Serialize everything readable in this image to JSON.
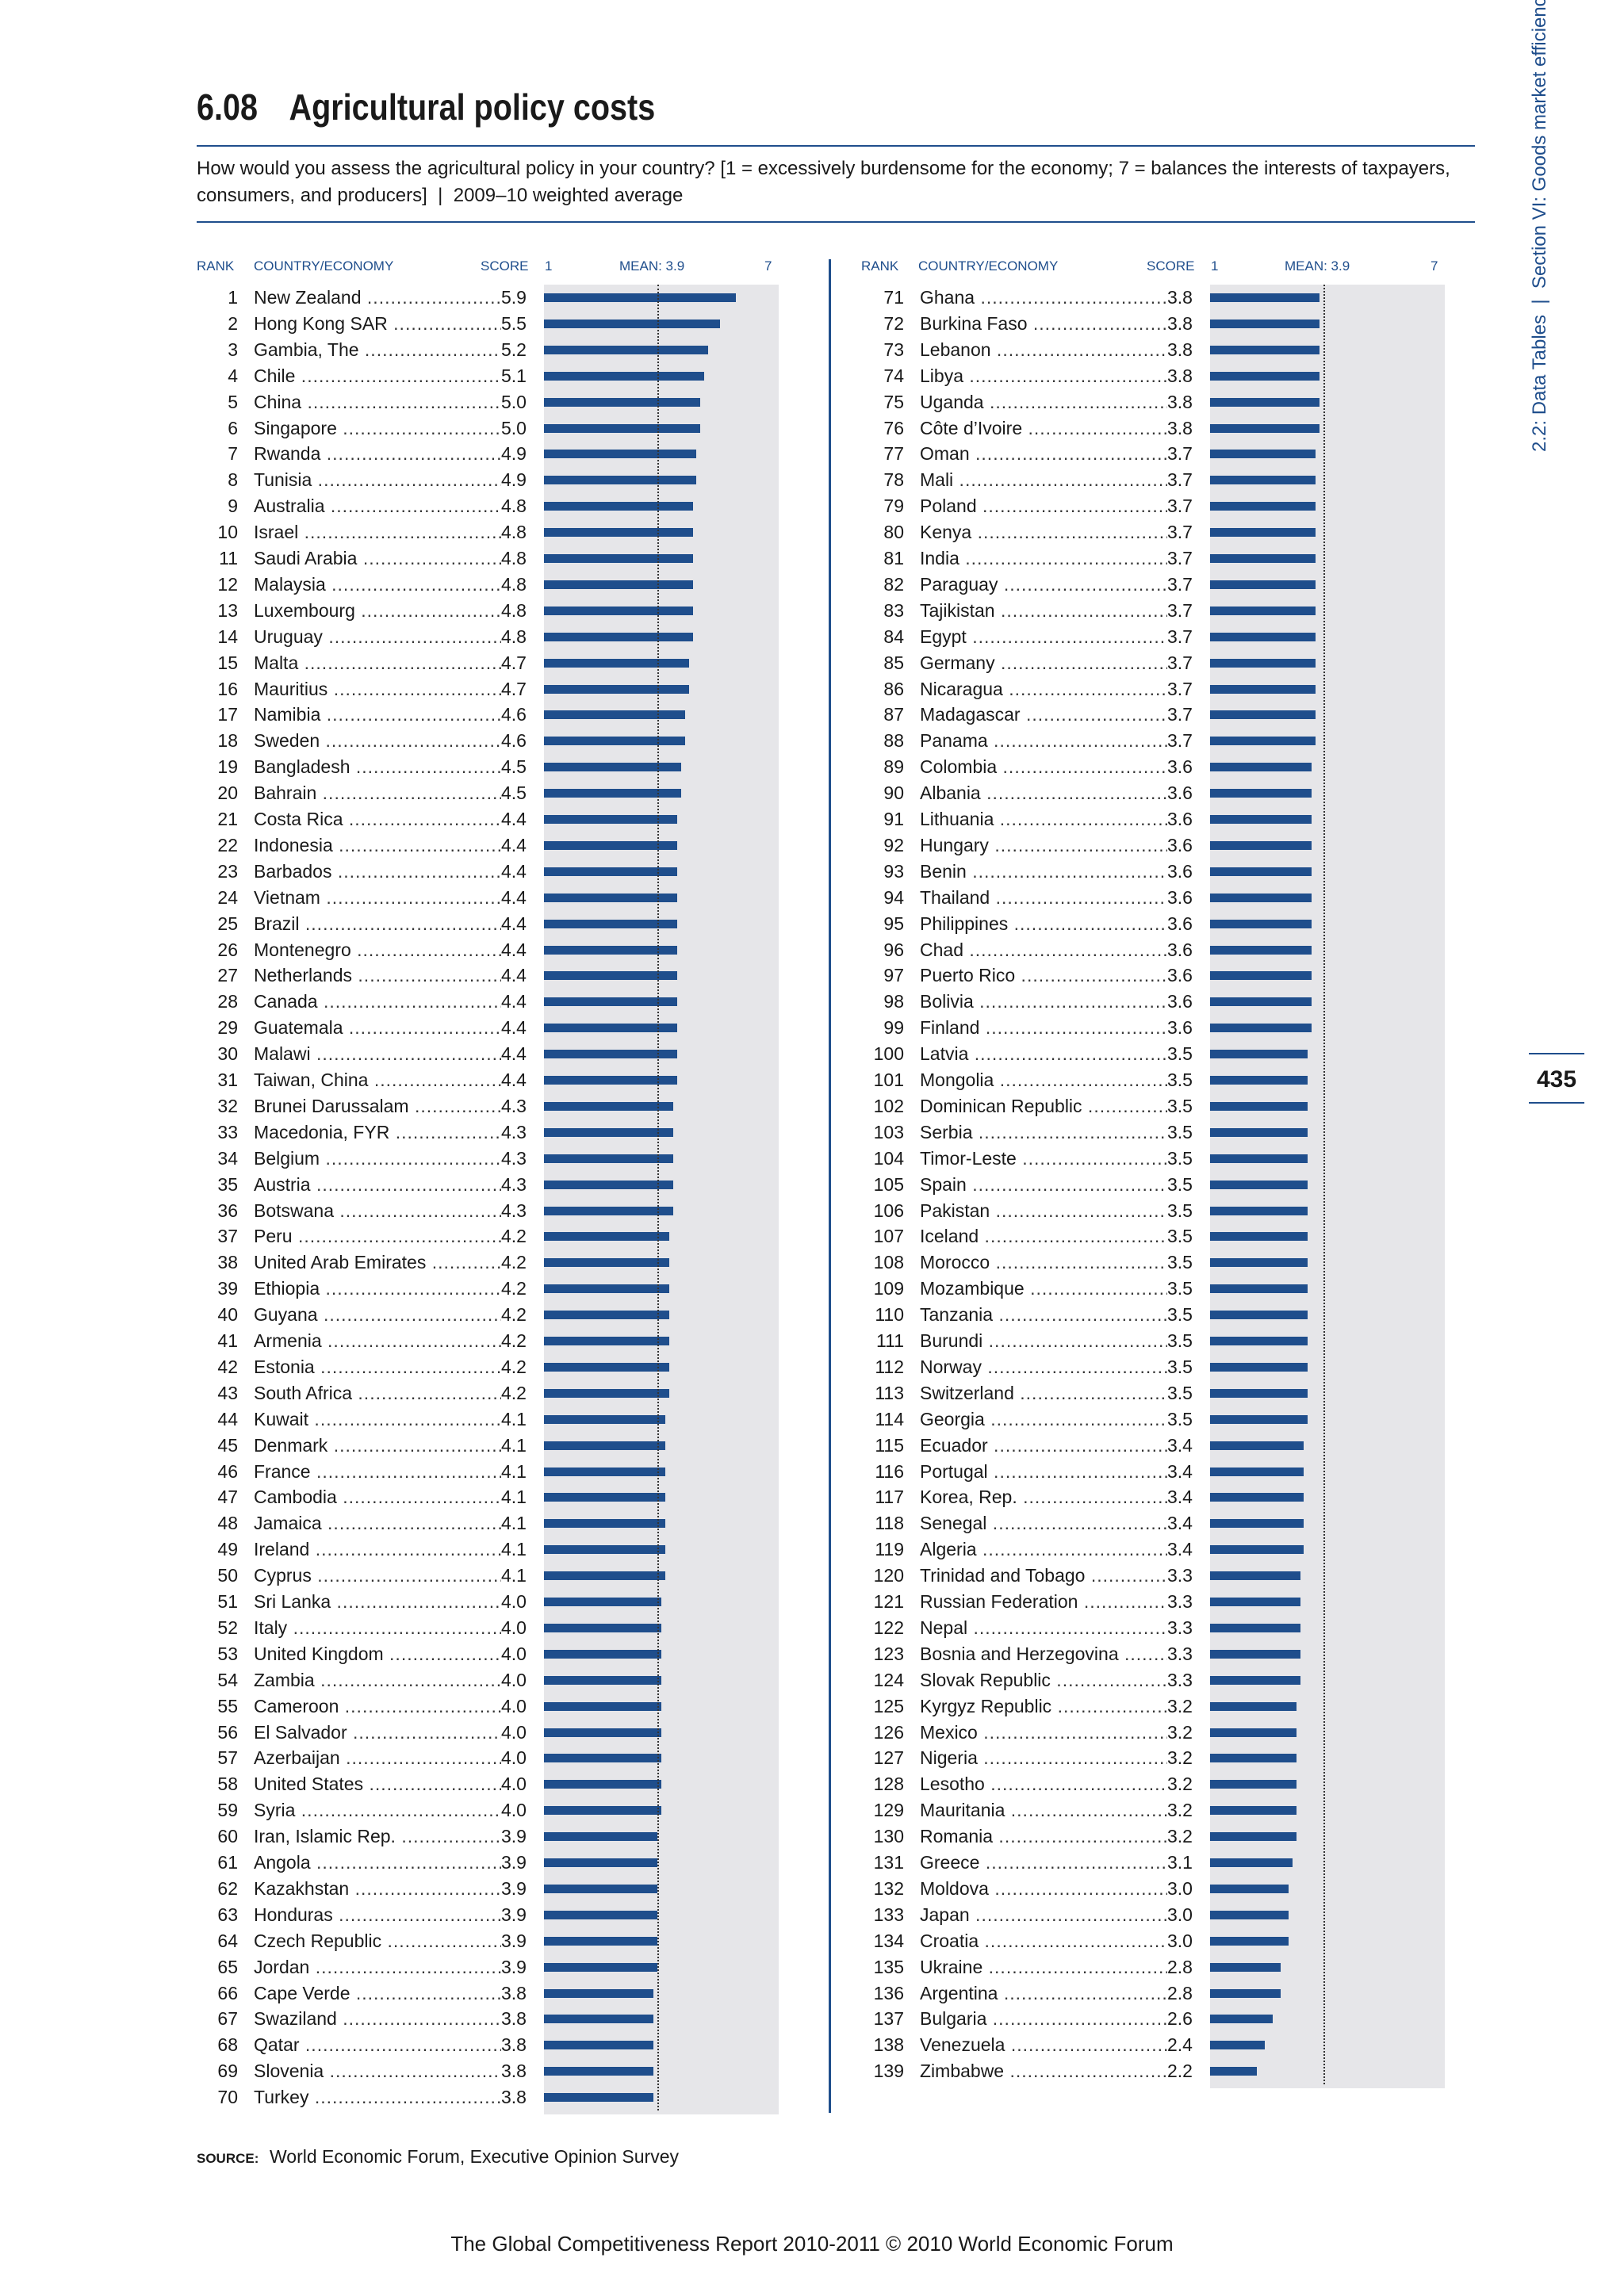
{
  "header": {
    "number": "6.08",
    "title": "Agricultural policy costs",
    "question": "How would you assess the agricultural policy in your country? [1 = excessively burdensome for the economy; 7 = balances the interests of taxpayers, consumers, and producers]",
    "period": "2009–10 weighted average"
  },
  "columns": {
    "rank": "RANK",
    "country": "COUNTRY/ECONOMY",
    "score": "SCORE",
    "scale_min": "1",
    "mean": "MEAN: 3.9",
    "scale_max": "7"
  },
  "side_tab": {
    "section": "Section VI: Goods market efficiency",
    "tables": "2.2: Data Tables",
    "page_number": "435"
  },
  "source": {
    "label": "SOURCE:",
    "text": "World Economic Forum, Executive Opinion Survey"
  },
  "footer": "The Global Competitiveness Report 2010-2011 © 2010 World Economic Forum",
  "colors": {
    "accent": "#1f4e8c",
    "plot_bg": "#e6e6e9"
  },
  "chart_data": {
    "type": "bar",
    "orientation": "horizontal",
    "xlim": [
      1,
      7
    ],
    "mean": 3.9,
    "rows": [
      {
        "rank": "1",
        "country": "New Zealand",
        "score": "5.9"
      },
      {
        "rank": "2",
        "country": "Hong Kong SAR",
        "score": "5.5"
      },
      {
        "rank": "3",
        "country": "Gambia, The",
        "score": "5.2"
      },
      {
        "rank": "4",
        "country": "Chile",
        "score": "5.1"
      },
      {
        "rank": "5",
        "country": "China",
        "score": "5.0"
      },
      {
        "rank": "6",
        "country": "Singapore",
        "score": "5.0"
      },
      {
        "rank": "7",
        "country": "Rwanda",
        "score": "4.9"
      },
      {
        "rank": "8",
        "country": "Tunisia",
        "score": "4.9"
      },
      {
        "rank": "9",
        "country": "Australia",
        "score": "4.8"
      },
      {
        "rank": "10",
        "country": "Israel",
        "score": "4.8"
      },
      {
        "rank": "11",
        "country": "Saudi Arabia",
        "score": "4.8"
      },
      {
        "rank": "12",
        "country": "Malaysia",
        "score": "4.8"
      },
      {
        "rank": "13",
        "country": "Luxembourg",
        "score": "4.8"
      },
      {
        "rank": "14",
        "country": "Uruguay",
        "score": "4.8"
      },
      {
        "rank": "15",
        "country": "Malta",
        "score": "4.7"
      },
      {
        "rank": "16",
        "country": "Mauritius",
        "score": "4.7"
      },
      {
        "rank": "17",
        "country": "Namibia",
        "score": "4.6"
      },
      {
        "rank": "18",
        "country": "Sweden",
        "score": "4.6"
      },
      {
        "rank": "19",
        "country": "Bangladesh",
        "score": "4.5"
      },
      {
        "rank": "20",
        "country": "Bahrain",
        "score": "4.5"
      },
      {
        "rank": "21",
        "country": "Costa Rica",
        "score": "4.4"
      },
      {
        "rank": "22",
        "country": "Indonesia",
        "score": "4.4"
      },
      {
        "rank": "23",
        "country": "Barbados",
        "score": "4.4"
      },
      {
        "rank": "24",
        "country": "Vietnam",
        "score": "4.4"
      },
      {
        "rank": "25",
        "country": "Brazil",
        "score": "4.4"
      },
      {
        "rank": "26",
        "country": "Montenegro",
        "score": "4.4"
      },
      {
        "rank": "27",
        "country": "Netherlands",
        "score": "4.4"
      },
      {
        "rank": "28",
        "country": "Canada",
        "score": "4.4"
      },
      {
        "rank": "29",
        "country": "Guatemala",
        "score": "4.4"
      },
      {
        "rank": "30",
        "country": "Malawi",
        "score": "4.4"
      },
      {
        "rank": "31",
        "country": "Taiwan, China",
        "score": "4.4"
      },
      {
        "rank": "32",
        "country": "Brunei Darussalam",
        "score": "4.3"
      },
      {
        "rank": "33",
        "country": "Macedonia, FYR",
        "score": "4.3"
      },
      {
        "rank": "34",
        "country": "Belgium",
        "score": "4.3"
      },
      {
        "rank": "35",
        "country": "Austria",
        "score": "4.3"
      },
      {
        "rank": "36",
        "country": "Botswana",
        "score": "4.3"
      },
      {
        "rank": "37",
        "country": "Peru",
        "score": "4.2"
      },
      {
        "rank": "38",
        "country": "United Arab Emirates",
        "score": "4.2"
      },
      {
        "rank": "39",
        "country": "Ethiopia",
        "score": "4.2"
      },
      {
        "rank": "40",
        "country": "Guyana",
        "score": "4.2"
      },
      {
        "rank": "41",
        "country": "Armenia",
        "score": "4.2"
      },
      {
        "rank": "42",
        "country": "Estonia",
        "score": "4.2"
      },
      {
        "rank": "43",
        "country": "South Africa",
        "score": "4.2"
      },
      {
        "rank": "44",
        "country": "Kuwait",
        "score": "4.1"
      },
      {
        "rank": "45",
        "country": "Denmark",
        "score": "4.1"
      },
      {
        "rank": "46",
        "country": "France",
        "score": "4.1"
      },
      {
        "rank": "47",
        "country": "Cambodia",
        "score": "4.1"
      },
      {
        "rank": "48",
        "country": "Jamaica",
        "score": "4.1"
      },
      {
        "rank": "49",
        "country": "Ireland",
        "score": "4.1"
      },
      {
        "rank": "50",
        "country": "Cyprus",
        "score": "4.1"
      },
      {
        "rank": "51",
        "country": "Sri Lanka",
        "score": "4.0"
      },
      {
        "rank": "52",
        "country": "Italy",
        "score": "4.0"
      },
      {
        "rank": "53",
        "country": "United Kingdom",
        "score": "4.0"
      },
      {
        "rank": "54",
        "country": "Zambia",
        "score": "4.0"
      },
      {
        "rank": "55",
        "country": "Cameroon",
        "score": "4.0"
      },
      {
        "rank": "56",
        "country": "El Salvador",
        "score": "4.0"
      },
      {
        "rank": "57",
        "country": "Azerbaijan",
        "score": "4.0"
      },
      {
        "rank": "58",
        "country": "United States",
        "score": "4.0"
      },
      {
        "rank": "59",
        "country": "Syria",
        "score": "4.0"
      },
      {
        "rank": "60",
        "country": "Iran, Islamic Rep.",
        "score": "3.9"
      },
      {
        "rank": "61",
        "country": "Angola",
        "score": "3.9"
      },
      {
        "rank": "62",
        "country": "Kazakhstan",
        "score": "3.9"
      },
      {
        "rank": "63",
        "country": "Honduras",
        "score": "3.9"
      },
      {
        "rank": "64",
        "country": "Czech Republic",
        "score": "3.9"
      },
      {
        "rank": "65",
        "country": "Jordan",
        "score": "3.9"
      },
      {
        "rank": "66",
        "country": "Cape Verde",
        "score": "3.8"
      },
      {
        "rank": "67",
        "country": "Swaziland",
        "score": "3.8"
      },
      {
        "rank": "68",
        "country": "Qatar",
        "score": "3.8"
      },
      {
        "rank": "69",
        "country": "Slovenia",
        "score": "3.8"
      },
      {
        "rank": "70",
        "country": "Turkey",
        "score": "3.8"
      },
      {
        "rank": "71",
        "country": "Ghana",
        "score": "3.8"
      },
      {
        "rank": "72",
        "country": "Burkina Faso",
        "score": "3.8"
      },
      {
        "rank": "73",
        "country": "Lebanon",
        "score": "3.8"
      },
      {
        "rank": "74",
        "country": "Libya",
        "score": "3.8"
      },
      {
        "rank": "75",
        "country": "Uganda",
        "score": "3.8"
      },
      {
        "rank": "76",
        "country": "Côte d’Ivoire",
        "score": "3.8"
      },
      {
        "rank": "77",
        "country": "Oman",
        "score": "3.7"
      },
      {
        "rank": "78",
        "country": "Mali",
        "score": "3.7"
      },
      {
        "rank": "79",
        "country": "Poland",
        "score": "3.7"
      },
      {
        "rank": "80",
        "country": "Kenya",
        "score": "3.7"
      },
      {
        "rank": "81",
        "country": "India",
        "score": "3.7"
      },
      {
        "rank": "82",
        "country": "Paraguay",
        "score": "3.7"
      },
      {
        "rank": "83",
        "country": "Tajikistan",
        "score": "3.7"
      },
      {
        "rank": "84",
        "country": "Egypt",
        "score": "3.7"
      },
      {
        "rank": "85",
        "country": "Germany",
        "score": "3.7"
      },
      {
        "rank": "86",
        "country": "Nicaragua",
        "score": "3.7"
      },
      {
        "rank": "87",
        "country": "Madagascar",
        "score": "3.7"
      },
      {
        "rank": "88",
        "country": "Panama",
        "score": "3.7"
      },
      {
        "rank": "89",
        "country": "Colombia",
        "score": "3.6"
      },
      {
        "rank": "90",
        "country": "Albania",
        "score": "3.6"
      },
      {
        "rank": "91",
        "country": "Lithuania",
        "score": "3.6"
      },
      {
        "rank": "92",
        "country": "Hungary",
        "score": "3.6"
      },
      {
        "rank": "93",
        "country": "Benin",
        "score": "3.6"
      },
      {
        "rank": "94",
        "country": "Thailand",
        "score": "3.6"
      },
      {
        "rank": "95",
        "country": "Philippines",
        "score": "3.6"
      },
      {
        "rank": "96",
        "country": "Chad",
        "score": "3.6"
      },
      {
        "rank": "97",
        "country": "Puerto Rico",
        "score": "3.6"
      },
      {
        "rank": "98",
        "country": "Bolivia",
        "score": "3.6"
      },
      {
        "rank": "99",
        "country": "Finland",
        "score": "3.6"
      },
      {
        "rank": "100",
        "country": "Latvia",
        "score": "3.5"
      },
      {
        "rank": "101",
        "country": "Mongolia",
        "score": "3.5"
      },
      {
        "rank": "102",
        "country": "Dominican Republic",
        "score": "3.5"
      },
      {
        "rank": "103",
        "country": "Serbia",
        "score": "3.5"
      },
      {
        "rank": "104",
        "country": "Timor-Leste",
        "score": "3.5"
      },
      {
        "rank": "105",
        "country": "Spain",
        "score": "3.5"
      },
      {
        "rank": "106",
        "country": "Pakistan",
        "score": "3.5"
      },
      {
        "rank": "107",
        "country": "Iceland",
        "score": "3.5"
      },
      {
        "rank": "108",
        "country": "Morocco",
        "score": "3.5"
      },
      {
        "rank": "109",
        "country": "Mozambique",
        "score": "3.5"
      },
      {
        "rank": "110",
        "country": "Tanzania",
        "score": "3.5"
      },
      {
        "rank": "111",
        "country": "Burundi",
        "score": "3.5"
      },
      {
        "rank": "112",
        "country": "Norway",
        "score": "3.5"
      },
      {
        "rank": "113",
        "country": "Switzerland",
        "score": "3.5"
      },
      {
        "rank": "114",
        "country": "Georgia",
        "score": "3.5"
      },
      {
        "rank": "115",
        "country": "Ecuador",
        "score": "3.4"
      },
      {
        "rank": "116",
        "country": "Portugal",
        "score": "3.4"
      },
      {
        "rank": "117",
        "country": "Korea, Rep.",
        "score": "3.4"
      },
      {
        "rank": "118",
        "country": "Senegal",
        "score": "3.4"
      },
      {
        "rank": "119",
        "country": "Algeria",
        "score": "3.4"
      },
      {
        "rank": "120",
        "country": "Trinidad and Tobago",
        "score": "3.3"
      },
      {
        "rank": "121",
        "country": "Russian Federation",
        "score": "3.3"
      },
      {
        "rank": "122",
        "country": "Nepal",
        "score": "3.3"
      },
      {
        "rank": "123",
        "country": "Bosnia and Herzegovina",
        "score": "3.3"
      },
      {
        "rank": "124",
        "country": "Slovak Republic",
        "score": "3.3"
      },
      {
        "rank": "125",
        "country": "Kyrgyz Republic",
        "score": "3.2"
      },
      {
        "rank": "126",
        "country": "Mexico",
        "score": "3.2"
      },
      {
        "rank": "127",
        "country": "Nigeria",
        "score": "3.2"
      },
      {
        "rank": "128",
        "country": "Lesotho",
        "score": "3.2"
      },
      {
        "rank": "129",
        "country": "Mauritania",
        "score": "3.2"
      },
      {
        "rank": "130",
        "country": "Romania",
        "score": "3.2"
      },
      {
        "rank": "131",
        "country": "Greece",
        "score": "3.1"
      },
      {
        "rank": "132",
        "country": "Moldova",
        "score": "3.0"
      },
      {
        "rank": "133",
        "country": "Japan",
        "score": "3.0"
      },
      {
        "rank": "134",
        "country": "Croatia",
        "score": "3.0"
      },
      {
        "rank": "135",
        "country": "Ukraine",
        "score": "2.8"
      },
      {
        "rank": "136",
        "country": "Argentina",
        "score": "2.8"
      },
      {
        "rank": "137",
        "country": "Bulgaria",
        "score": "2.6"
      },
      {
        "rank": "138",
        "country": "Venezuela",
        "score": "2.4"
      },
      {
        "rank": "139",
        "country": "Zimbabwe",
        "score": "2.2"
      }
    ]
  }
}
